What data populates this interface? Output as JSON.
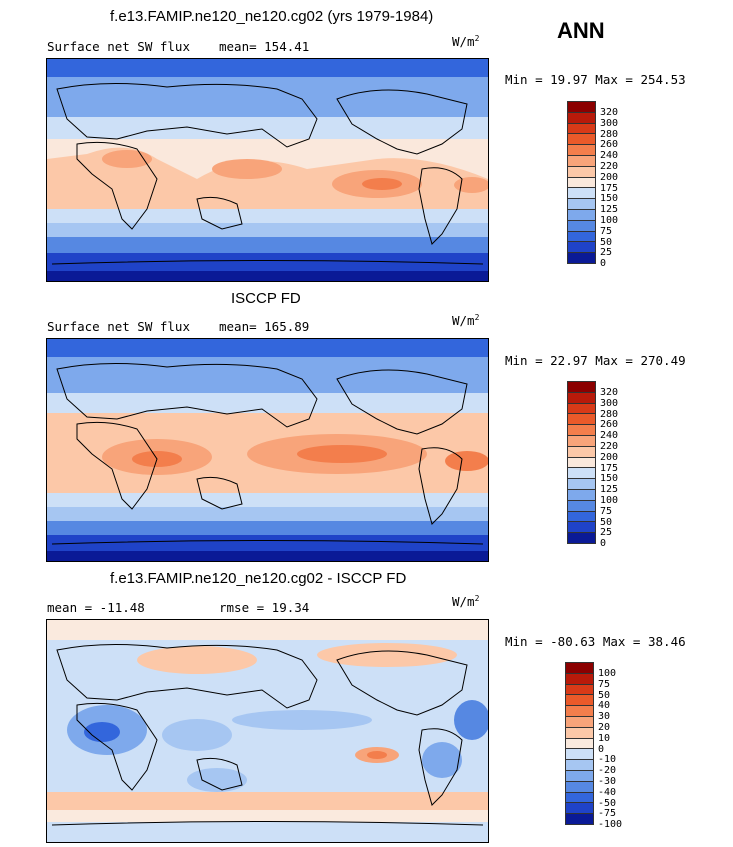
{
  "season": "ANN",
  "panels": [
    {
      "title": "f.e13.FAMIP.ne120_ne120.cg02 (yrs 1979-1984)",
      "left_label": "Surface net SW flux",
      "right_label": "mean= 154.41",
      "units_base": "W/m",
      "units_exp": "2",
      "minmax": "Min =  19.97 Max = 254.53",
      "levels": [
        "320",
        "300",
        "280",
        "260",
        "240",
        "220",
        "200",
        "175",
        "150",
        "125",
        "100",
        "75",
        "50",
        "25",
        "0"
      ],
      "colors": [
        "#8b0000",
        "#b81a0a",
        "#d83a18",
        "#ea5a2a",
        "#f37e4c",
        "#f8a47a",
        "#fcc8a8",
        "#fae8dc",
        "#cde0f7",
        "#a6c6f2",
        "#7ea9ec",
        "#5688e2",
        "#3366dc",
        "#1f43c8",
        "#0a1a96"
      ]
    },
    {
      "title": "ISCCP FD",
      "left_label": "Surface net SW flux",
      "right_label": "mean= 165.89",
      "units_base": "W/m",
      "units_exp": "2",
      "minmax": "Min =  22.97 Max = 270.49",
      "levels": [
        "320",
        "300",
        "280",
        "260",
        "240",
        "220",
        "200",
        "175",
        "150",
        "125",
        "100",
        "75",
        "50",
        "25",
        "0"
      ],
      "colors": [
        "#8b0000",
        "#b81a0a",
        "#d83a18",
        "#ea5a2a",
        "#f37e4c",
        "#f8a47a",
        "#fcc8a8",
        "#fae8dc",
        "#cde0f7",
        "#a6c6f2",
        "#7ea9ec",
        "#5688e2",
        "#3366dc",
        "#1f43c8",
        "#0a1a96"
      ]
    },
    {
      "title": "f.e13.FAMIP.ne120_ne120.cg02 - ISCCP FD",
      "left_label": "mean = -11.48",
      "right_label": "rmse =  19.34",
      "units_base": "W/m",
      "units_exp": "2",
      "minmax": "Min = -80.63 Max =  38.46",
      "levels": [
        "100",
        "75",
        "50",
        "40",
        "30",
        "20",
        "10",
        "0",
        "-10",
        "-20",
        "-30",
        "-40",
        "-50",
        "-75",
        "-100"
      ],
      "colors": [
        "#8b0000",
        "#b81a0a",
        "#d83a18",
        "#ea5a2a",
        "#f37e4c",
        "#f8a47a",
        "#fcc8a8",
        "#faeade",
        "#cde0f7",
        "#a6c6f2",
        "#7ea9ec",
        "#5688e2",
        "#3366dc",
        "#1f43c8",
        "#0a1a96"
      ]
    }
  ]
}
